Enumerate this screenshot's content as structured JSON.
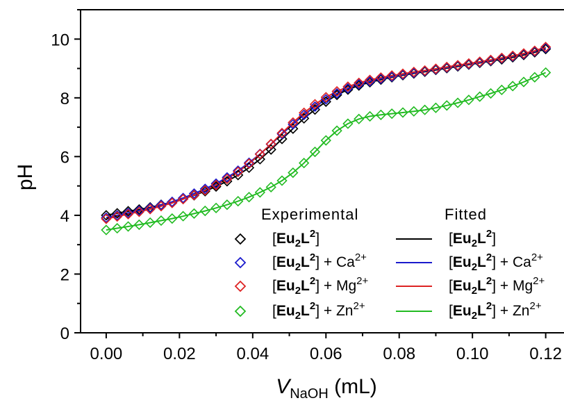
{
  "chart_data": {
    "type": "scatter",
    "xlabel_var": "V",
    "xlabel_sub": "NaOH",
    "xlabel_unit": " (mL)",
    "ylabel": "pH",
    "xlim": [
      -0.007,
      0.125
    ],
    "ylim": [
      0,
      11
    ],
    "x_ticks": [
      "0.00",
      "0.02",
      "0.04",
      "0.06",
      "0.08",
      "0.10",
      "0.12"
    ],
    "x_tick_values": [
      0,
      0.02,
      0.04,
      0.06,
      0.08,
      0.1,
      0.12
    ],
    "y_ticks": [
      "0",
      "2",
      "4",
      "6",
      "8",
      "10"
    ],
    "y_tick_values": [
      0,
      2,
      4,
      6,
      8,
      10
    ],
    "legend": {
      "placement": "lower-right",
      "experimental_title": "Experimental",
      "fitted_title": "Fitted",
      "entries": [
        {
          "series": "Eu2L2",
          "main": "Eu",
          "sub": "2",
          "l": "L",
          "sup": "2",
          "suffix": "",
          "ion": "",
          "charge": ""
        },
        {
          "series": "Eu2L2+Ca",
          "main": "Eu",
          "sub": "2",
          "l": "L",
          "sup": "2",
          "suffix": " + ",
          "ion": "Ca",
          "charge": "2+"
        },
        {
          "series": "Eu2L2+Mg",
          "main": "Eu",
          "sub": "2",
          "l": "L",
          "sup": "2",
          "suffix": " + ",
          "ion": "Mg",
          "charge": "2+"
        },
        {
          "series": "Eu2L2+Zn",
          "main": "Eu",
          "sub": "2",
          "l": "L",
          "sup": "2",
          "suffix": " + ",
          "ion": "Zn",
          "charge": "2+"
        }
      ]
    },
    "series": [
      {
        "color": "#000000",
        "x": [
          0.0,
          0.003,
          0.006,
          0.009,
          0.012,
          0.015,
          0.018,
          0.021,
          0.024,
          0.027,
          0.03,
          0.033,
          0.036,
          0.039,
          0.042,
          0.045,
          0.048,
          0.051,
          0.054,
          0.057,
          0.06,
          0.063,
          0.066,
          0.069,
          0.072,
          0.075,
          0.078,
          0.081,
          0.084,
          0.087,
          0.09,
          0.093,
          0.096,
          0.099,
          0.102,
          0.105,
          0.108,
          0.111,
          0.114,
          0.117,
          0.12
        ],
        "y": [
          4.0,
          4.07,
          4.14,
          4.2,
          4.27,
          4.36,
          4.45,
          4.56,
          4.68,
          4.82,
          4.98,
          5.16,
          5.37,
          5.62,
          5.91,
          6.24,
          6.6,
          6.95,
          7.3,
          7.6,
          7.87,
          8.1,
          8.28,
          8.42,
          8.53,
          8.62,
          8.7,
          8.77,
          8.83,
          8.89,
          8.95,
          9.01,
          9.07,
          9.13,
          9.19,
          9.25,
          9.31,
          9.38,
          9.46,
          9.55,
          9.66
        ]
      },
      {
        "color": "#1a1acc",
        "x": [
          0.0,
          0.003,
          0.006,
          0.009,
          0.012,
          0.015,
          0.018,
          0.021,
          0.024,
          0.027,
          0.03,
          0.033,
          0.036,
          0.039,
          0.042,
          0.045,
          0.048,
          0.051,
          0.054,
          0.057,
          0.06,
          0.063,
          0.066,
          0.069,
          0.072,
          0.075,
          0.078,
          0.081,
          0.084,
          0.087,
          0.09,
          0.093,
          0.096,
          0.099,
          0.102,
          0.105,
          0.108,
          0.111,
          0.114,
          0.117,
          0.12
        ],
        "y": [
          3.92,
          4.0,
          4.08,
          4.16,
          4.25,
          4.35,
          4.46,
          4.59,
          4.74,
          4.9,
          5.08,
          5.29,
          5.52,
          5.79,
          6.09,
          6.42,
          6.77,
          7.1,
          7.42,
          7.7,
          7.95,
          8.15,
          8.32,
          8.46,
          8.56,
          8.65,
          8.72,
          8.79,
          8.85,
          8.91,
          8.97,
          9.03,
          9.09,
          9.15,
          9.21,
          9.27,
          9.34,
          9.41,
          9.49,
          9.58,
          9.7
        ]
      },
      {
        "color": "#dd2222",
        "x": [
          0.0,
          0.003,
          0.006,
          0.009,
          0.012,
          0.015,
          0.018,
          0.021,
          0.024,
          0.027,
          0.03,
          0.033,
          0.036,
          0.039,
          0.042,
          0.045,
          0.048,
          0.051,
          0.054,
          0.057,
          0.06,
          0.063,
          0.066,
          0.069,
          0.072,
          0.075,
          0.078,
          0.081,
          0.084,
          0.087,
          0.09,
          0.093,
          0.096,
          0.099,
          0.102,
          0.105,
          0.108,
          0.111,
          0.114,
          0.117,
          0.12
        ],
        "y": [
          3.88,
          3.96,
          4.04,
          4.12,
          4.21,
          4.31,
          4.42,
          4.55,
          4.69,
          4.85,
          5.03,
          5.24,
          5.48,
          5.76,
          6.08,
          6.43,
          6.8,
          7.16,
          7.49,
          7.78,
          8.02,
          8.22,
          8.38,
          8.51,
          8.61,
          8.69,
          8.76,
          8.82,
          8.88,
          8.93,
          8.99,
          9.05,
          9.11,
          9.17,
          9.23,
          9.29,
          9.36,
          9.43,
          9.51,
          9.6,
          9.73
        ]
      },
      {
        "color": "#22bb22",
        "x": [
          0.0,
          0.003,
          0.006,
          0.009,
          0.012,
          0.015,
          0.018,
          0.021,
          0.024,
          0.027,
          0.03,
          0.033,
          0.036,
          0.039,
          0.042,
          0.045,
          0.048,
          0.051,
          0.054,
          0.057,
          0.06,
          0.063,
          0.066,
          0.069,
          0.072,
          0.075,
          0.078,
          0.081,
          0.084,
          0.087,
          0.09,
          0.093,
          0.096,
          0.099,
          0.102,
          0.105,
          0.108,
          0.111,
          0.114,
          0.117,
          0.12
        ],
        "y": [
          3.5,
          3.56,
          3.62,
          3.68,
          3.75,
          3.82,
          3.89,
          3.97,
          4.06,
          4.15,
          4.25,
          4.36,
          4.48,
          4.62,
          4.78,
          4.96,
          5.18,
          5.45,
          5.78,
          6.16,
          6.55,
          6.88,
          7.12,
          7.28,
          7.37,
          7.42,
          7.46,
          7.5,
          7.54,
          7.59,
          7.66,
          7.74,
          7.83,
          7.93,
          8.04,
          8.15,
          8.27,
          8.4,
          8.54,
          8.7,
          8.86
        ]
      }
    ]
  }
}
